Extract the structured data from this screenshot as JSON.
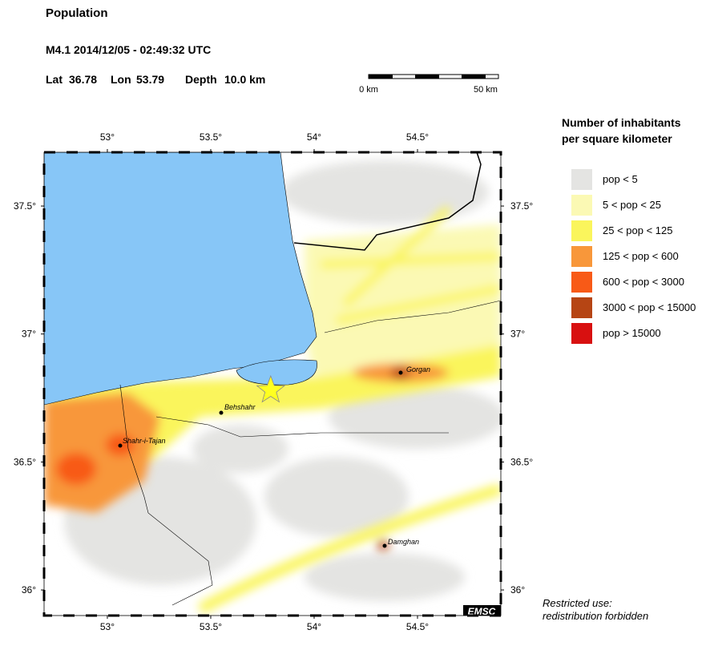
{
  "header": {
    "title": "Population",
    "event": "M4.1  2014/12/05 - 02:49:32 UTC",
    "lat_label": "Lat",
    "lat": 36.78,
    "lon_label": "Lon",
    "lon": 53.79,
    "depth_label": "Depth",
    "depth": "10.0 km"
  },
  "scale_bar": {
    "start": "0 km",
    "end": "50 km"
  },
  "map": {
    "lon_range": [
      52.694,
      54.903
    ],
    "lat_range": [
      35.9,
      37.71
    ],
    "lon_ticks": [
      {
        "value": 53,
        "label": "53°"
      },
      {
        "value": 53.5,
        "label": "53.5°"
      },
      {
        "value": 54,
        "label": "54°"
      },
      {
        "value": 54.5,
        "label": "54.5°"
      }
    ],
    "lat_ticks": [
      {
        "value": 37.5,
        "label": "37.5°"
      },
      {
        "value": 37,
        "label": "37°"
      },
      {
        "value": 36.5,
        "label": "36.5°"
      },
      {
        "value": 36,
        "label": "36°"
      }
    ],
    "cities": [
      "Gorgan",
      "Behshahr",
      "Shahr-i-Tajan",
      "Damghan"
    ],
    "credit": "EMSC"
  },
  "legend": {
    "title_line1": "Number of inhabitants",
    "title_line2": "per square kilometer",
    "items": [
      {
        "label": "pop < 5",
        "color": "#e4e4e2"
      },
      {
        "label": "5 < pop < 25",
        "color": "#fbf9b4"
      },
      {
        "label": "25 < pop < 125",
        "color": "#faf55c"
      },
      {
        "label": "125 < pop < 600",
        "color": "#f8973a"
      },
      {
        "label": "600 < pop < 3000",
        "color": "#f85a17"
      },
      {
        "label": "3000 < pop < 15000",
        "color": "#b64514"
      },
      {
        "label": "pop > 15000",
        "color": "#d81010"
      }
    ]
  },
  "footer": {
    "line1": "Restricted use:",
    "line2": "redistribution forbidden"
  }
}
